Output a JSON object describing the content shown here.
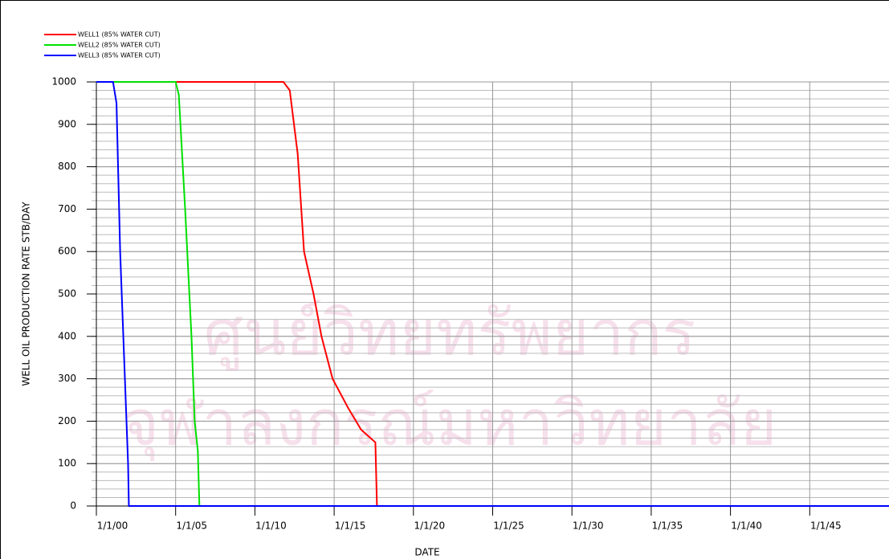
{
  "chart_data": {
    "type": "line",
    "xlabel": "DATE",
    "ylabel": "WELL OIL PRODUCTION RATE   STB/DAY",
    "watermark": [
      "ศูนย์วิทยทรัพยากร",
      "จุฬาลงกรณ์มหาวิทยาลัย"
    ],
    "xlim": [
      2000,
      2050
    ],
    "xticks": [
      {
        "value": 2000,
        "label": "1/1/00"
      },
      {
        "value": 2005,
        "label": "1/1/05"
      },
      {
        "value": 2010,
        "label": "1/1/10"
      },
      {
        "value": 2015,
        "label": "1/1/15"
      },
      {
        "value": 2020,
        "label": "1/1/20"
      },
      {
        "value": 2025,
        "label": "1/1/25"
      },
      {
        "value": 2030,
        "label": "1/1/30"
      },
      {
        "value": 2035,
        "label": "1/1/35"
      },
      {
        "value": 2040,
        "label": "1/1/40"
      },
      {
        "value": 2045,
        "label": "1/1/45"
      }
    ],
    "ylim": [
      0,
      1000
    ],
    "yticks": [
      0,
      100,
      200,
      300,
      400,
      500,
      600,
      700,
      800,
      900,
      1000
    ],
    "y_minor_step": 20,
    "grid": true,
    "legend": "top-left",
    "series": [
      {
        "name": "WELL1 (85% WATER CUT)",
        "color": "#ff0000",
        "x": [
          2000,
          2011.8,
          2012.2,
          2012.7,
          2013.1,
          2013.7,
          2014.2,
          2014.9,
          2015.9,
          2016.7,
          2017.6,
          2017.7,
          2050
        ],
        "values": [
          1000,
          1000,
          980,
          830,
          600,
          500,
          400,
          300,
          230,
          180,
          150,
          0,
          0
        ]
      },
      {
        "name": "WELL2 (85% WATER CUT)",
        "color": "#00e000",
        "x": [
          2000,
          2005.0,
          2005.2,
          2005.6,
          2006.0,
          2006.2,
          2006.4,
          2006.5,
          2050
        ],
        "values": [
          1000,
          1000,
          970,
          700,
          400,
          200,
          130,
          0,
          0
        ]
      },
      {
        "name": "WELL3 (85% WATER CUT)",
        "color": "#0000ff",
        "x": [
          2000,
          2001.05,
          2001.27,
          2001.5,
          2001.8,
          2002.0,
          2002.05,
          2050
        ],
        "values": [
          1000,
          1000,
          950,
          600,
          300,
          100,
          0,
          0
        ]
      }
    ]
  }
}
